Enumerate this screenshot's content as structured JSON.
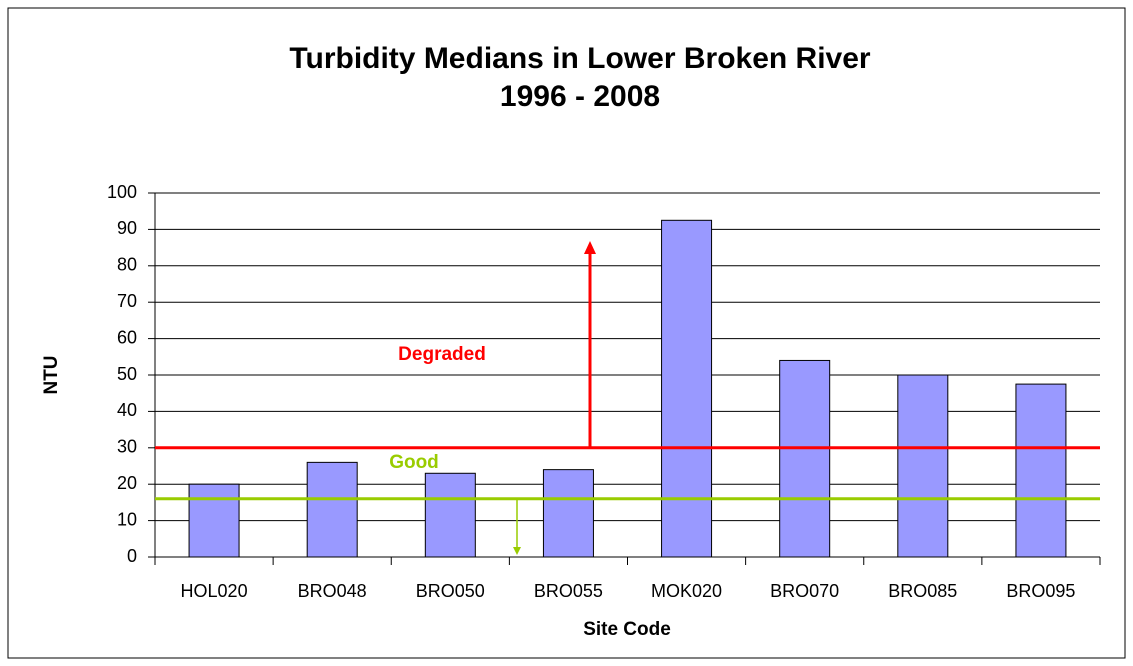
{
  "chart_data": {
    "type": "bar",
    "title": "Turbidity Medians in Lower Broken River",
    "subtitle": "1996 - 2008",
    "x_label": "Site Code",
    "y_label": "NTU",
    "categories": [
      "HOL020",
      "BRO048",
      "BRO050",
      "BRO055",
      "MOK020",
      "BRO070",
      "BRO085",
      "BRO095"
    ],
    "values": [
      20,
      26,
      23,
      24,
      92.5,
      54,
      50,
      47.5
    ],
    "color": "#9999ff",
    "ylim": [
      0,
      100
    ],
    "yticks": [
      0,
      10,
      20,
      30,
      40,
      50,
      60,
      70,
      80,
      90,
      100
    ],
    "grid": true,
    "thresholds": [
      {
        "label": "Degraded",
        "value": 30,
        "color": "#ff0000"
      },
      {
        "label": "Good",
        "value": 16,
        "color": "#99cc00"
      }
    ]
  }
}
